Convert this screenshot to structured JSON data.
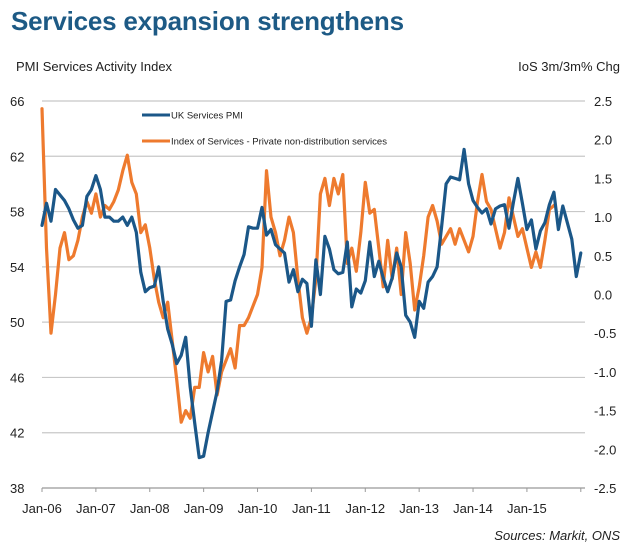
{
  "title": "Services expansion strengthens",
  "source": "Sources: Markit, ONS",
  "colors": {
    "title": "#1d5a85",
    "pmi": "#1b5788",
    "ios": "#ee7a2e",
    "grid": "#c8c8c8"
  },
  "chart_data": {
    "type": "line",
    "title": "Services expansion strengthens",
    "ylabel": "PMI Services Activity Index",
    "y2label": "IoS 3m/3m% Chg",
    "xlabel": "",
    "ylim": [
      38,
      66
    ],
    "y2lim": [
      -2.5,
      2.5
    ],
    "yticks": [
      "66",
      "62",
      "58",
      "54",
      "50",
      "46",
      "42",
      "38"
    ],
    "y2ticks": [
      "2.5",
      "2.0",
      "1.5",
      "1.0",
      "0.5",
      "0.0",
      "-0.5",
      "-1.0",
      "-1.5",
      "-2.0",
      "-2.5"
    ],
    "xticks": [
      "Jan-06",
      "Jan-07",
      "Jan-08",
      "Jan-09",
      "Jan-10",
      "Jan-11",
      "Jan-12",
      "Jan-13",
      "Jan-14",
      "Jan-15"
    ],
    "x_start": "Jan-06",
    "x_frequency": "monthly",
    "grid": true,
    "legend_position": "top-left",
    "series": [
      {
        "name": "UK Services PMI",
        "axis": "left",
        "values": [
          57.0,
          58.6,
          57.3,
          59.6,
          59.2,
          58.8,
          58.2,
          57.4,
          56.8,
          57.0,
          59.1,
          59.6,
          60.6,
          59.6,
          57.6,
          57.6,
          57.3,
          57.3,
          57.6,
          57.0,
          57.6,
          56.5,
          53.6,
          52.2,
          52.5,
          52.6,
          54.0,
          51.5,
          49.5,
          48.4,
          47.0,
          47.6,
          48.9,
          45.3,
          42.7,
          40.2,
          40.3,
          42.0,
          43.5,
          45.0,
          47.2,
          51.5,
          51.6,
          53.0,
          54.0,
          54.9,
          56.9,
          56.8,
          56.8,
          58.3,
          56.3,
          56.7,
          55.6,
          55.3,
          55.0,
          52.9,
          53.8,
          52.2,
          53.1,
          52.8,
          49.7,
          54.5,
          52.0,
          56.2,
          55.3,
          53.8,
          53.5,
          53.6,
          55.8,
          51.1,
          52.4,
          52.1,
          53.0,
          55.8,
          53.3,
          54.4,
          53.2,
          52.2,
          53.2,
          55.0,
          54.0,
          50.5,
          50.0,
          48.9,
          51.5,
          51.0,
          52.9,
          53.3,
          54.0,
          56.9,
          60.0,
          60.5,
          60.4,
          60.3,
          62.5,
          60.0,
          58.8,
          58.3,
          57.9,
          58.2,
          57.1,
          58.2,
          58.4,
          58.5,
          56.8,
          58.7,
          60.4,
          58.6,
          56.7,
          57.4,
          55.3,
          56.6,
          57.2,
          58.5,
          59.4,
          56.7,
          58.4,
          57.2,
          56.0,
          53.3,
          55.0
        ]
      },
      {
        "name": "Index of Services - Private non-distribution services",
        "axis": "right",
        "values": [
          2.4,
          0.6,
          -0.5,
          0.0,
          0.6,
          0.8,
          0.45,
          0.5,
          0.7,
          1.0,
          1.2,
          1.05,
          1.3,
          1.0,
          1.15,
          1.1,
          1.2,
          1.35,
          1.6,
          1.8,
          1.45,
          1.3,
          0.8,
          0.9,
          0.6,
          0.2,
          -0.1,
          -0.3,
          -0.1,
          -0.6,
          -1.1,
          -1.65,
          -1.5,
          -1.6,
          -1.2,
          -1.2,
          -0.75,
          -1.0,
          -0.8,
          -1.3,
          -1.0,
          -0.85,
          -0.7,
          -0.95,
          -0.4,
          -0.4,
          -0.3,
          -0.15,
          0.0,
          0.35,
          1.6,
          1.0,
          0.8,
          0.5,
          0.7,
          1.0,
          0.8,
          0.2,
          -0.3,
          -0.5,
          -0.3,
          0.2,
          1.3,
          1.5,
          1.15,
          1.5,
          1.3,
          1.55,
          0.4,
          0.6,
          0.3,
          0.8,
          1.45,
          1.05,
          1.1,
          0.6,
          0.1,
          0.7,
          0.2,
          0.6,
          0.0,
          0.8,
          0.4,
          -0.2,
          0.1,
          0.5,
          1.0,
          1.15,
          0.95,
          0.65,
          0.75,
          0.85,
          0.65,
          0.85,
          0.7,
          0.55,
          0.75,
          1.2,
          1.55,
          1.2,
          1.1,
          0.85,
          0.6,
          0.8,
          1.25,
          1.0,
          0.75,
          0.85,
          0.6,
          0.35,
          0.55,
          0.35,
          0.7,
          1.1,
          1.15
        ]
      }
    ]
  }
}
